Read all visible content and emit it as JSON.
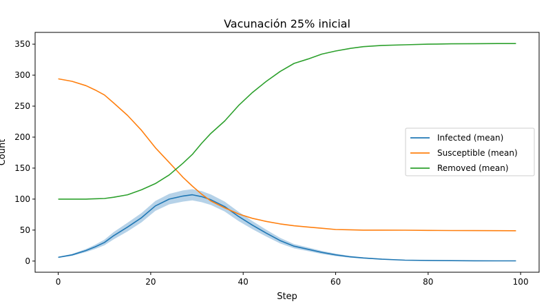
{
  "chart_data": {
    "type": "line",
    "title": "Vacunación 25% inicial",
    "xlabel": "Step",
    "ylabel": "Count",
    "xlim": [
      -5,
      104
    ],
    "ylim": [
      -18,
      369
    ],
    "xticks": [
      0,
      20,
      40,
      60,
      80,
      100
    ],
    "yticks": [
      0,
      50,
      100,
      150,
      200,
      250,
      300,
      350
    ],
    "grid": false,
    "legend_position": "center-right",
    "x": [
      0,
      3,
      6,
      8,
      10,
      12,
      15,
      18,
      21,
      24,
      27,
      29,
      31,
      33,
      36,
      39,
      42,
      45,
      48,
      51,
      54,
      57,
      60,
      63,
      66,
      70,
      75,
      80,
      85,
      90,
      95,
      99
    ],
    "series": [
      {
        "name": "Infected (mean)",
        "color": "#1f77b4",
        "band_color": "#aecde6",
        "values": [
          6,
          10,
          17,
          23,
          30,
          41,
          55,
          70,
          89,
          100,
          105,
          107,
          104,
          99,
          88,
          72,
          58,
          45,
          33,
          24,
          19,
          14,
          10,
          7,
          5,
          3,
          1.5,
          1,
          0.7,
          0.5,
          0.4,
          0.3
        ],
        "band_halfwidth": [
          1,
          1.5,
          2.5,
          3.5,
          4.5,
          6,
          7,
          7.5,
          8,
          8.5,
          9,
          9,
          9,
          8.5,
          8,
          7.5,
          6.5,
          5.5,
          4.5,
          3.5,
          3,
          2.5,
          2,
          1.5,
          1,
          0.8,
          0.5,
          0.4,
          0.3,
          0.2,
          0.2,
          0.2
        ]
      },
      {
        "name": "Susceptible (mean)",
        "color": "#ff7f0e",
        "values": [
          294,
          290,
          283,
          276,
          268,
          255,
          235,
          211,
          183,
          159,
          135,
          121,
          108,
          97,
          86,
          76,
          69,
          64,
          60,
          57,
          55,
          53,
          51,
          50.5,
          50,
          50,
          49.8,
          49.5,
          49.3,
          49.2,
          49.1,
          49
        ]
      },
      {
        "name": "Removed (mean)",
        "color": "#2ca02c",
        "values": [
          100,
          100,
          100,
          100.5,
          101,
          103,
          107,
          115,
          125,
          139,
          158,
          172,
          190,
          206,
          226,
          251,
          272,
          290,
          306,
          319,
          326,
          334,
          339,
          343,
          346,
          348,
          349,
          350,
          350.5,
          350.8,
          351,
          351
        ]
      }
    ]
  }
}
